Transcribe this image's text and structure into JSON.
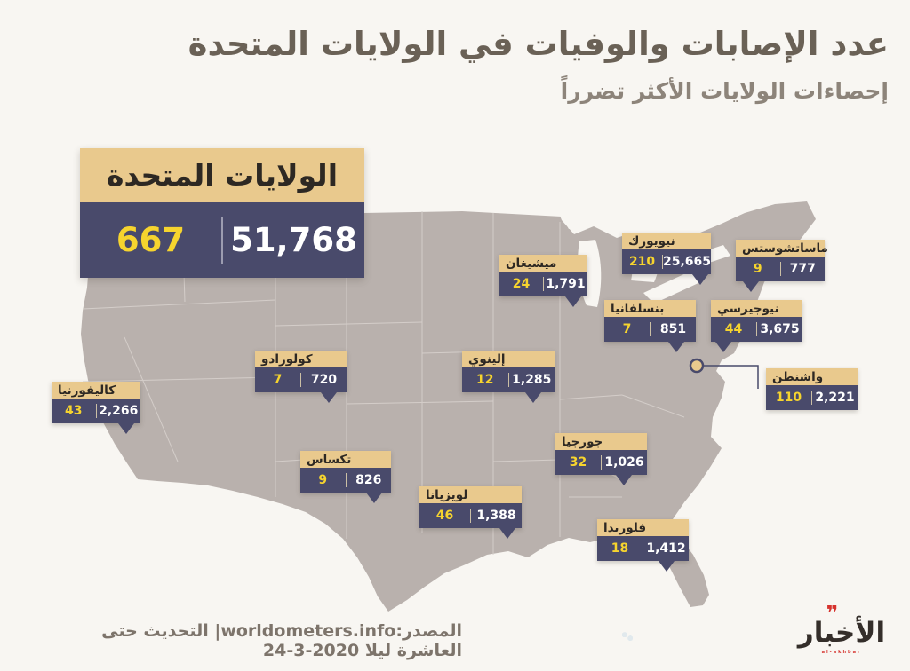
{
  "title": "عدد الإصابات والوفيات في الولايات المتحدة",
  "subtitle": "إحصاءات الولايات الأكثر تضرراً",
  "country": {
    "name": "الولايات المتحدة",
    "deaths": "667",
    "cases": "51,768"
  },
  "states": [
    {
      "id": "michigan",
      "name": "ميشيغان",
      "deaths": "24",
      "cases": "1,791"
    },
    {
      "id": "new-york",
      "name": "نيويورك",
      "deaths": "210",
      "cases": "25,665"
    },
    {
      "id": "massachusetts",
      "name": "ماساتشوستس",
      "deaths": "9",
      "cases": "777"
    },
    {
      "id": "pennsylvania",
      "name": "بنسلفانيا",
      "deaths": "7",
      "cases": "851"
    },
    {
      "id": "new-jersey",
      "name": "نيوجيرسي",
      "deaths": "44",
      "cases": "3,675"
    },
    {
      "id": "colorado",
      "name": "كولورادو",
      "deaths": "7",
      "cases": "720"
    },
    {
      "id": "illinois",
      "name": "إلينوي",
      "deaths": "12",
      "cases": "1,285"
    },
    {
      "id": "washington",
      "name": "واشنطن",
      "deaths": "110",
      "cases": "2,221"
    },
    {
      "id": "california",
      "name": "كاليفورنيا",
      "deaths": "43",
      "cases": "2,266"
    },
    {
      "id": "texas",
      "name": "تكساس",
      "deaths": "9",
      "cases": "826"
    },
    {
      "id": "georgia",
      "name": "جورجيا",
      "deaths": "32",
      "cases": "1,026"
    },
    {
      "id": "louisiana",
      "name": "لويزيانا",
      "deaths": "46",
      "cases": "1,388"
    },
    {
      "id": "florida",
      "name": "فلوريدا",
      "deaths": "18",
      "cases": "1,412"
    }
  ],
  "footer": {
    "source": "المصدر:worldometers.info| التحديث حتى العاشرة ليلا 2020-3-24"
  },
  "logo": {
    "name": "الأخبار",
    "latin": "al-akhbar"
  },
  "colors": {
    "background": "#f8f6f2",
    "gold_header": "#e9c98d",
    "navy_panel": "#494a6b",
    "deaths_yellow": "#f6d42e",
    "cases_white": "#ffffff",
    "map_fill": "#b9b1ad",
    "map_border": "#d7d1cd",
    "title_text": "#6a6156",
    "logo_red": "#d6332e"
  }
}
